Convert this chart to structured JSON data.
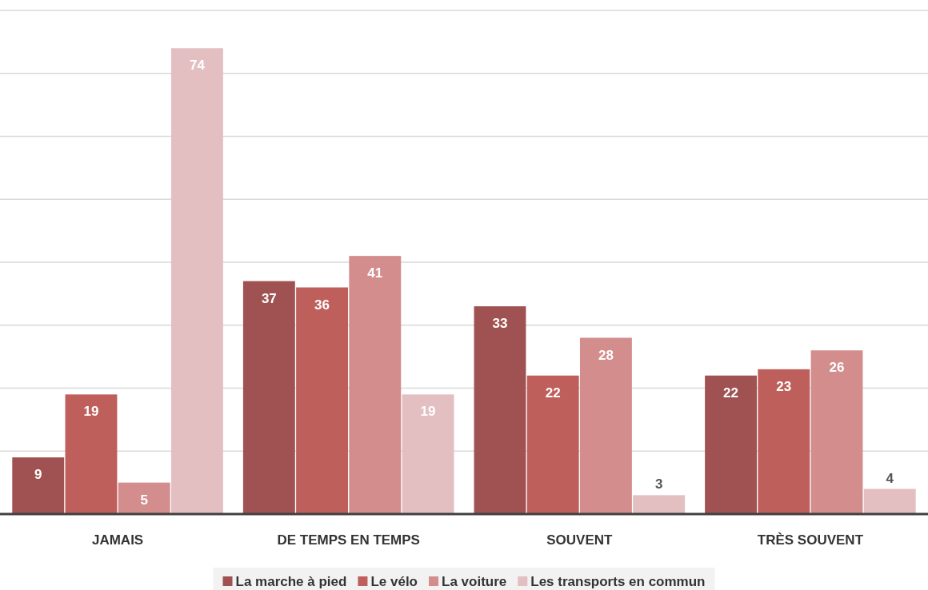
{
  "chart_data": {
    "type": "bar",
    "categories": [
      "JAMAIS",
      "DE TEMPS EN TEMPS",
      "SOUVENT",
      "TRÈS SOUVENT"
    ],
    "series": [
      {
        "name": "La marche à pied",
        "color": "#a05252",
        "values": [
          9,
          37,
          33,
          22
        ]
      },
      {
        "name": "Le vélo",
        "color": "#bf5f5c",
        "values": [
          19,
          36,
          22,
          23
        ]
      },
      {
        "name": "La voiture",
        "color": "#d38d8d",
        "values": [
          5,
          41,
          28,
          26
        ]
      },
      {
        "name": "Les transports en commun",
        "color": "#e3bfc2",
        "values": [
          74,
          19,
          3,
          4
        ]
      }
    ],
    "ylim": [
      0,
      80
    ],
    "yticks": [
      {
        "value": 0,
        "label": null
      },
      {
        "value": 10,
        "label": null
      },
      {
        "value": 20,
        "label": null
      },
      {
        "value": 30,
        "label": null
      },
      {
        "value": 40,
        "label": null
      },
      {
        "value": 50,
        "label": null
      },
      {
        "value": 60,
        "label": null
      },
      {
        "value": 70,
        "label": null
      },
      {
        "value": 80,
        "label": null
      }
    ],
    "grid": "y",
    "data_labels": true,
    "legend": "bottom"
  }
}
